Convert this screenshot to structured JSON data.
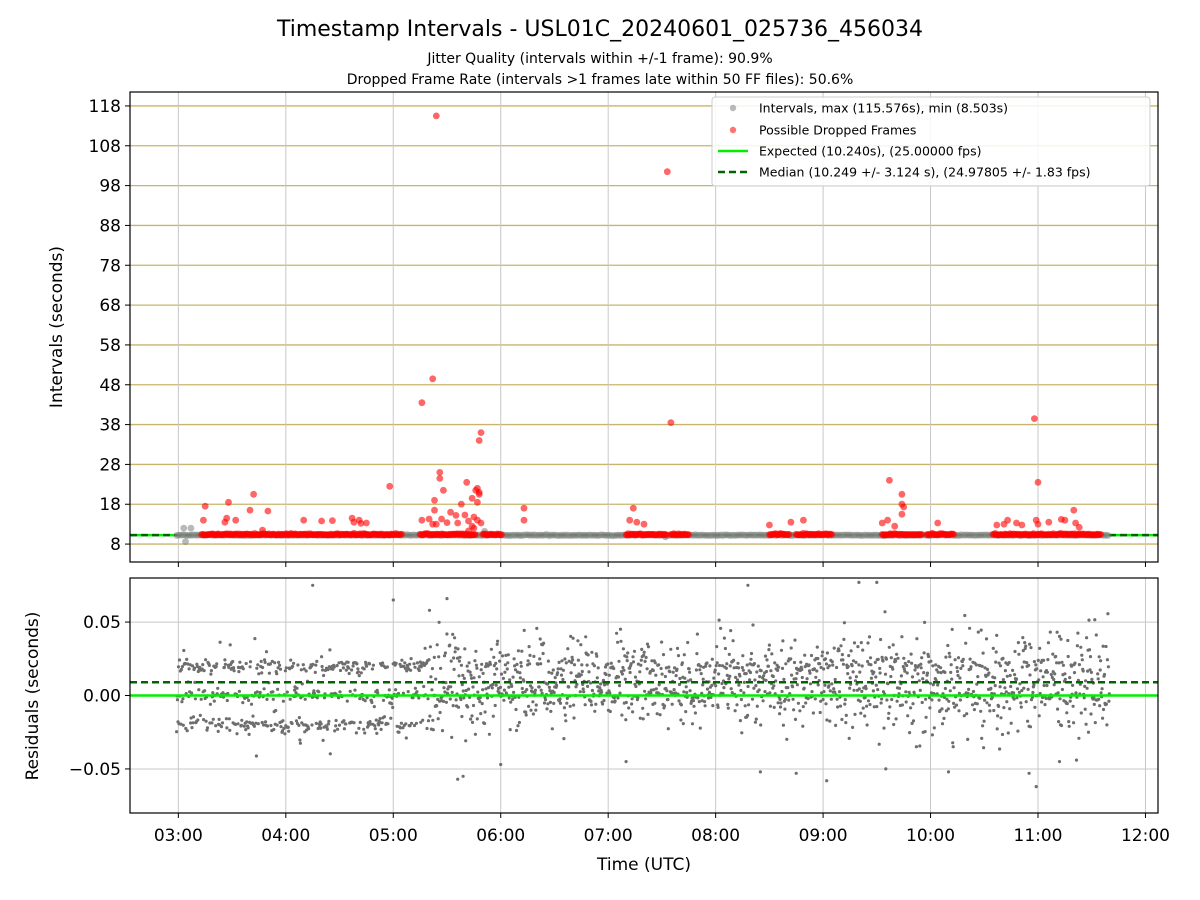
{
  "title": "Timestamp Intervals - USL01C_20240601_025736_456034",
  "subtitle_1": "Jitter Quality (intervals within +/-1 frame): 90.9%",
  "subtitle_2": "Dropped Frame Rate (intervals >1 frames late within 50 FF files): 50.6%",
  "colors": {
    "intervals": "#808080",
    "dropped": "#ff0000",
    "expected": "#00ee00",
    "median": "#006400",
    "hgrid_top": "#c8b46a",
    "grid": "#c8c8c8",
    "residuals": "#6e6e6e"
  },
  "chart_data": [
    {
      "type": "scatter",
      "panel": "top",
      "ylabel": "Intervals (seconds)",
      "xlim": [
        "02:33",
        "12:07"
      ],
      "ylim": [
        3.5,
        121.5
      ],
      "yticks": [
        8,
        18,
        28,
        38,
        48,
        58,
        68,
        78,
        88,
        98,
        108,
        118
      ],
      "ytick_labels": [
        "8",
        "18",
        "28",
        "38",
        "48",
        "58",
        "68",
        "78",
        "88",
        "98",
        "108",
        "118"
      ],
      "legend_position": "top-right",
      "legend": [
        {
          "key": "intervals",
          "label": "Intervals, max (115.576s), min (8.503s)"
        },
        {
          "key": "dropped",
          "label": "Possible Dropped Frames"
        },
        {
          "key": "expected",
          "label": "Expected (10.240s), (25.00000 fps)"
        },
        {
          "key": "median",
          "label": "Median (10.249 +/- 3.124 s), (24.97805 +/- 1.83 fps)"
        }
      ],
      "reference_lines": {
        "expected": 10.24,
        "median": 10.249
      },
      "intervals_time_range": [
        "02:59",
        "11:40"
      ],
      "intervals_typical": 10.24,
      "dropped_frame_clusters": [
        [
          "03:13",
          "05:05"
        ],
        [
          "05:15",
          "05:46"
        ],
        [
          "05:50",
          "06:01"
        ],
        [
          "07:10",
          "07:33"
        ],
        [
          "07:35",
          "07:45"
        ],
        [
          "08:30",
          "08:41"
        ],
        [
          "08:45",
          "09:05"
        ],
        [
          "09:33",
          "09:55"
        ],
        [
          "09:58",
          "10:13"
        ],
        [
          "10:35",
          "11:35"
        ]
      ],
      "dropped_frame_outliers": [
        {
          "t": "03:15",
          "y": 17.5
        },
        {
          "t": "03:14",
          "y": 14
        },
        {
          "t": "03:26",
          "y": 13.5
        },
        {
          "t": "03:27",
          "y": 14.5
        },
        {
          "t": "03:28",
          "y": 18.5
        },
        {
          "t": "03:32",
          "y": 14
        },
        {
          "t": "03:40",
          "y": 16.5
        },
        {
          "t": "03:42",
          "y": 20.5
        },
        {
          "t": "03:50",
          "y": 16.3
        },
        {
          "t": "03:47",
          "y": 11.5
        },
        {
          "t": "04:10",
          "y": 14
        },
        {
          "t": "04:20",
          "y": 13.8
        },
        {
          "t": "04:26",
          "y": 13.9
        },
        {
          "t": "04:38",
          "y": 13.5
        },
        {
          "t": "04:41",
          "y": 14
        },
        {
          "t": "04:37",
          "y": 14.5
        },
        {
          "t": "04:42",
          "y": 13.2
        },
        {
          "t": "04:45",
          "y": 13.3
        },
        {
          "t": "04:58",
          "y": 22.5
        },
        {
          "t": "05:16",
          "y": 14
        },
        {
          "t": "05:20",
          "y": 14.3
        },
        {
          "t": "05:35",
          "y": 15.2
        },
        {
          "t": "05:47",
          "y": 14
        },
        {
          "t": "05:49",
          "y": 13.3
        },
        {
          "t": "05:27",
          "y": 14.3
        },
        {
          "t": "05:30",
          "y": 13.4
        },
        {
          "t": "05:32",
          "y": 16
        },
        {
          "t": "05:36",
          "y": 13.3
        },
        {
          "t": "05:40",
          "y": 15.3
        },
        {
          "t": "05:24",
          "y": 13
        },
        {
          "t": "05:42",
          "y": 13.8
        },
        {
          "t": "05:44",
          "y": 12.5
        },
        {
          "t": "05:45",
          "y": 14.8
        },
        {
          "t": "05:47",
          "y": 22
        },
        {
          "t": "05:48",
          "y": 21
        },
        {
          "t": "05:48",
          "y": 20.5
        },
        {
          "t": "05:16",
          "y": 43.5
        },
        {
          "t": "05:22",
          "y": 49.5
        },
        {
          "t": "05:24",
          "y": 115.5
        },
        {
          "t": "05:26",
          "y": 26
        },
        {
          "t": "05:26",
          "y": 24.5
        },
        {
          "t": "05:28",
          "y": 21.5
        },
        {
          "t": "05:23",
          "y": 19
        },
        {
          "t": "05:23",
          "y": 16.5
        },
        {
          "t": "05:22",
          "y": 13
        },
        {
          "t": "05:38",
          "y": 18
        },
        {
          "t": "05:41",
          "y": 23.5
        },
        {
          "t": "05:44",
          "y": 19.5
        },
        {
          "t": "05:46",
          "y": 21.5
        },
        {
          "t": "05:47",
          "y": 18.5
        },
        {
          "t": "05:49",
          "y": 36
        },
        {
          "t": "05:48",
          "y": 34
        },
        {
          "t": "05:45",
          "y": 12
        },
        {
          "t": "05:42",
          "y": 11.3
        },
        {
          "t": "06:13",
          "y": 14
        },
        {
          "t": "06:13",
          "y": 17
        },
        {
          "t": "07:14",
          "y": 17
        },
        {
          "t": "07:12",
          "y": 14
        },
        {
          "t": "07:16",
          "y": 13.5
        },
        {
          "t": "07:20",
          "y": 13
        },
        {
          "t": "07:33",
          "y": 101.5
        },
        {
          "t": "07:35",
          "y": 38.5
        },
        {
          "t": "08:30",
          "y": 12.8
        },
        {
          "t": "08:42",
          "y": 13.5
        },
        {
          "t": "08:49",
          "y": 14
        },
        {
          "t": "09:33",
          "y": 13.3
        },
        {
          "t": "09:36",
          "y": 14
        },
        {
          "t": "09:37",
          "y": 24
        },
        {
          "t": "09:40",
          "y": 12.5
        },
        {
          "t": "09:44",
          "y": 20.5
        },
        {
          "t": "09:44",
          "y": 18
        },
        {
          "t": "09:45",
          "y": 17.3
        },
        {
          "t": "09:44",
          "y": 15.5
        },
        {
          "t": "10:04",
          "y": 13.3
        },
        {
          "t": "10:37",
          "y": 12.8
        },
        {
          "t": "10:41",
          "y": 13
        },
        {
          "t": "10:43",
          "y": 14
        },
        {
          "t": "10:48",
          "y": 13.3
        },
        {
          "t": "10:51",
          "y": 12.8
        },
        {
          "t": "10:58",
          "y": 39.5
        },
        {
          "t": "10:59",
          "y": 14
        },
        {
          "t": "11:00",
          "y": 13
        },
        {
          "t": "11:00",
          "y": 23.5
        },
        {
          "t": "11:06",
          "y": 13.5
        },
        {
          "t": "11:13",
          "y": 14.2
        },
        {
          "t": "11:15",
          "y": 14
        },
        {
          "t": "11:20",
          "y": 16.5
        },
        {
          "t": "11:21",
          "y": 13.3
        },
        {
          "t": "11:23",
          "y": 12.2
        }
      ],
      "gray_outliers": [
        {
          "t": "03:03",
          "y": 12
        },
        {
          "t": "03:07",
          "y": 12
        },
        {
          "t": "03:04",
          "y": 8.6
        },
        {
          "t": "05:51",
          "y": 11.2
        },
        {
          "t": "07:32",
          "y": 9.8
        }
      ]
    },
    {
      "type": "scatter",
      "panel": "bottom",
      "ylabel": "Residuals (seconds)",
      "xlabel": "Time (UTC)",
      "xlim": [
        "02:33",
        "12:07"
      ],
      "ylim": [
        -0.08,
        0.08
      ],
      "yticks": [
        -0.05,
        0.0,
        0.05
      ],
      "ytick_labels": [
        "−0.05",
        "0.00",
        "0.05"
      ],
      "xtick_labels": [
        "03:00",
        "04:00",
        "05:00",
        "06:00",
        "07:00",
        "08:00",
        "09:00",
        "10:00",
        "11:00",
        "12:00"
      ],
      "reference_lines": {
        "expected": 0.0,
        "median": 0.009
      },
      "residuals_time_range": [
        "02:59",
        "11:40"
      ],
      "residual_bands": [
        0.02,
        0.0,
        -0.02
      ],
      "residual_extremes": [
        {
          "t": "04:15",
          "y": 0.075
        },
        {
          "t": "05:36",
          "y": -0.057
        },
        {
          "t": "05:39",
          "y": -0.055
        },
        {
          "t": "06:00",
          "y": -0.047
        },
        {
          "t": "07:10",
          "y": -0.045
        },
        {
          "t": "08:25",
          "y": -0.052
        },
        {
          "t": "08:45",
          "y": -0.053
        },
        {
          "t": "09:02",
          "y": -0.058
        },
        {
          "t": "09:30",
          "y": 0.077
        },
        {
          "t": "09:35",
          "y": -0.05
        },
        {
          "t": "10:10",
          "y": -0.052
        },
        {
          "t": "10:55",
          "y": -0.053
        },
        {
          "t": "10:59",
          "y": -0.062
        },
        {
          "t": "11:12",
          "y": -0.045
        },
        {
          "t": "09:20",
          "y": 0.077
        },
        {
          "t": "05:00",
          "y": 0.065
        },
        {
          "t": "05:30",
          "y": 0.066
        },
        {
          "t": "08:18",
          "y": 0.075
        }
      ]
    }
  ]
}
